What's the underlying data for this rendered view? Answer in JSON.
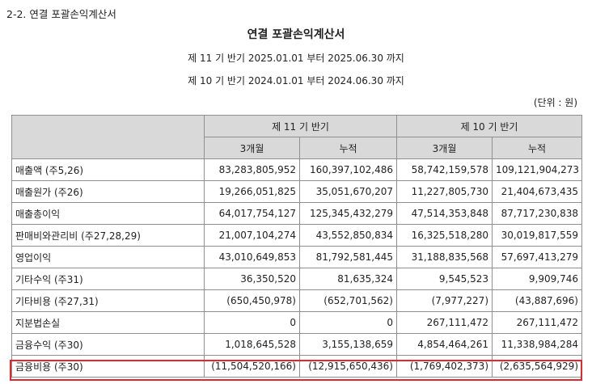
{
  "section_heading": "2-2. 연결 포괄손익계산서",
  "title": "연결 포괄손익계산서",
  "periods": [
    "제 11 기 반기 2025.01.01 부터 2025.06.30 까지",
    "제 10 기 반기 2024.01.01 부터 2024.06.30 까지"
  ],
  "unit": "(단위 : 원)",
  "table": {
    "group_headers": [
      "제 11 기 반기",
      "제 10 기 반기"
    ],
    "sub_headers": [
      "3개월",
      "누적",
      "3개월",
      "누적"
    ],
    "rows": [
      {
        "label": "매출액 (주5,26)",
        "values": [
          "83,283,805,952",
          "160,397,102,486",
          "58,742,159,578",
          "109,121,904,273"
        ]
      },
      {
        "label": "매출원가 (주26)",
        "values": [
          "19,266,051,825",
          "35,051,670,207",
          "11,227,805,730",
          "21,404,673,435"
        ]
      },
      {
        "label": "매출총이익",
        "values": [
          "64,017,754,127",
          "125,345,432,279",
          "47,514,353,848",
          "87,717,230,838"
        ]
      },
      {
        "label": "판매비와관리비 (주27,28,29)",
        "values": [
          "21,007,104,274",
          "43,552,850,834",
          "16,325,518,280",
          "30,019,817,559"
        ]
      },
      {
        "label": "영업이익",
        "values": [
          "43,010,649,853",
          "81,792,581,445",
          "31,188,835,568",
          "57,697,413,279"
        ]
      },
      {
        "label": "기타수익 (주31)",
        "values": [
          "36,350,520",
          "81,635,324",
          "9,545,523",
          "9,909,746"
        ]
      },
      {
        "label": "기타비용 (주27,31)",
        "values": [
          "(650,450,978)",
          "(652,701,562)",
          "(7,977,227)",
          "(43,887,696)"
        ]
      },
      {
        "label": "지분법손실",
        "values": [
          "0",
          "0",
          "267,111,472",
          "267,111,472"
        ]
      },
      {
        "label": "금융수익 (주30)",
        "values": [
          "1,018,645,528",
          "3,155,138,659",
          "4,854,464,261",
          "11,338,984,284"
        ]
      },
      {
        "label": "금융비용 (주30)",
        "values": [
          "(11,504,520,166)",
          "(12,915,650,436)",
          "(1,769,402,373)",
          "(2,635,564,929)"
        ]
      }
    ]
  },
  "highlight_color": "#e8242c"
}
